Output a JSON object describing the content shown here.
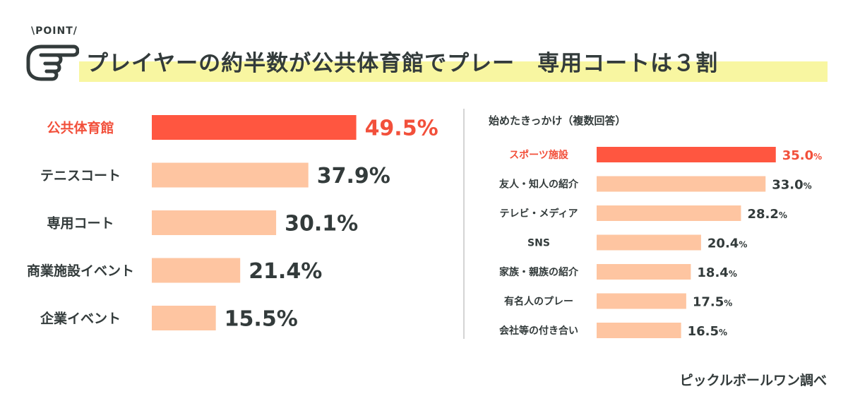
{
  "header": {
    "point_label": "\\POINT/",
    "title": "プレイヤーの約半数が公共体育館でプレー　専用コートは３割"
  },
  "source": "ピックルボールワン調べ",
  "colors": {
    "highlight_bar": "#ff5640",
    "normal_bar": "#fec5a1",
    "highlight_text": "#f2503b",
    "text": "#333b3b",
    "title_marker": "#f8f6a1"
  },
  "chart_data": [
    {
      "type": "bar",
      "orientation": "horizontal",
      "title": "",
      "categories": [
        "公共体育館",
        "テニスコート",
        "専用コート",
        "商業施設イベント",
        "企業イベント"
      ],
      "values": [
        49.5,
        37.9,
        30.1,
        21.4,
        15.5
      ],
      "value_labels": [
        "49.5%",
        "37.9%",
        "30.1%",
        "21.4%",
        "15.5%"
      ],
      "highlight_index": 0,
      "grid": false
    },
    {
      "type": "bar",
      "orientation": "horizontal",
      "title": "始めたきっかけ（複数回答）",
      "categories": [
        "スポーツ施設",
        "友人・知人の紹介",
        "テレビ・メディア",
        "SNS",
        "家族・親族の紹介",
        "有名人のプレー",
        "会社等の付き合い"
      ],
      "values": [
        35.0,
        33.0,
        28.2,
        20.4,
        18.4,
        17.5,
        16.5
      ],
      "value_numbers": [
        "35.0",
        "33.0",
        "28.2",
        "20.4",
        "18.4",
        "17.5",
        "16.5"
      ],
      "unit": "%",
      "highlight_index": 0,
      "grid": false
    }
  ]
}
